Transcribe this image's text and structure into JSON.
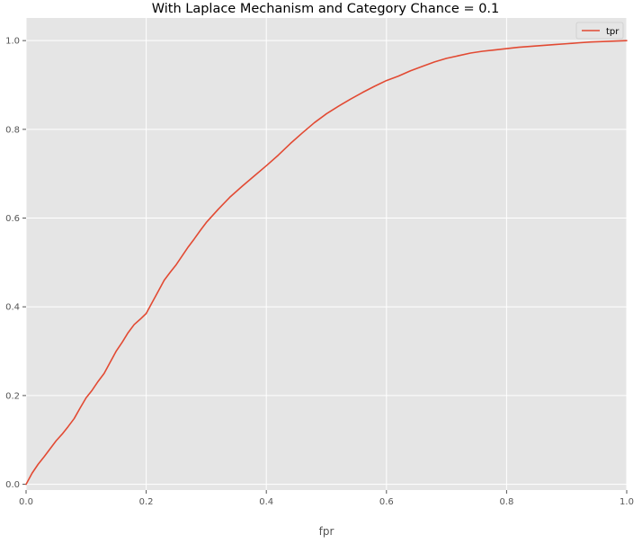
{
  "chart_data": {
    "type": "line",
    "title": "With Laplace Mechanism and Category Chance = 0.1",
    "xlabel": "fpr",
    "ylabel": "",
    "xlim": [
      0.0,
      1.0
    ],
    "ylim": [
      -0.013,
      1.051
    ],
    "grid": true,
    "legend_position": "top-right",
    "xticks": [
      0.0,
      0.2,
      0.4,
      0.6,
      0.8,
      1.0
    ],
    "xtick_labels": [
      "0.0",
      "0.2",
      "0.4",
      "0.6",
      "0.8",
      "1.0"
    ],
    "yticks": [
      0.0,
      0.2,
      0.4,
      0.6,
      0.8,
      1.0
    ],
    "ytick_labels": [
      "0.0",
      "0.2",
      "0.4",
      "0.6",
      "0.8",
      "1.0"
    ],
    "series": [
      {
        "name": "tpr",
        "color": "#E24A33",
        "x": [
          0.0,
          0.01,
          0.02,
          0.03,
          0.04,
          0.05,
          0.06,
          0.07,
          0.08,
          0.09,
          0.1,
          0.11,
          0.12,
          0.13,
          0.14,
          0.15,
          0.16,
          0.17,
          0.18,
          0.19,
          0.2,
          0.21,
          0.22,
          0.23,
          0.24,
          0.25,
          0.26,
          0.27,
          0.28,
          0.29,
          0.3,
          0.32,
          0.34,
          0.36,
          0.38,
          0.4,
          0.42,
          0.44,
          0.46,
          0.48,
          0.5,
          0.52,
          0.54,
          0.56,
          0.58,
          0.6,
          0.62,
          0.64,
          0.66,
          0.68,
          0.7,
          0.72,
          0.74,
          0.76,
          0.78,
          0.8,
          0.82,
          0.84,
          0.86,
          0.88,
          0.9,
          0.92,
          0.94,
          0.96,
          0.98,
          1.0
        ],
        "values": [
          0.0,
          0.025,
          0.045,
          0.062,
          0.08,
          0.098,
          0.113,
          0.13,
          0.148,
          0.172,
          0.195,
          0.212,
          0.232,
          0.25,
          0.275,
          0.3,
          0.32,
          0.342,
          0.36,
          0.372,
          0.385,
          0.41,
          0.435,
          0.46,
          0.478,
          0.495,
          0.515,
          0.535,
          0.553,
          0.572,
          0.59,
          0.62,
          0.648,
          0.672,
          0.695,
          0.718,
          0.742,
          0.768,
          0.792,
          0.815,
          0.835,
          0.852,
          0.868,
          0.883,
          0.897,
          0.91,
          0.92,
          0.932,
          0.942,
          0.952,
          0.96,
          0.966,
          0.972,
          0.976,
          0.979,
          0.982,
          0.985,
          0.987,
          0.989,
          0.991,
          0.993,
          0.995,
          0.997,
          0.998,
          0.999,
          1.0
        ]
      }
    ]
  }
}
